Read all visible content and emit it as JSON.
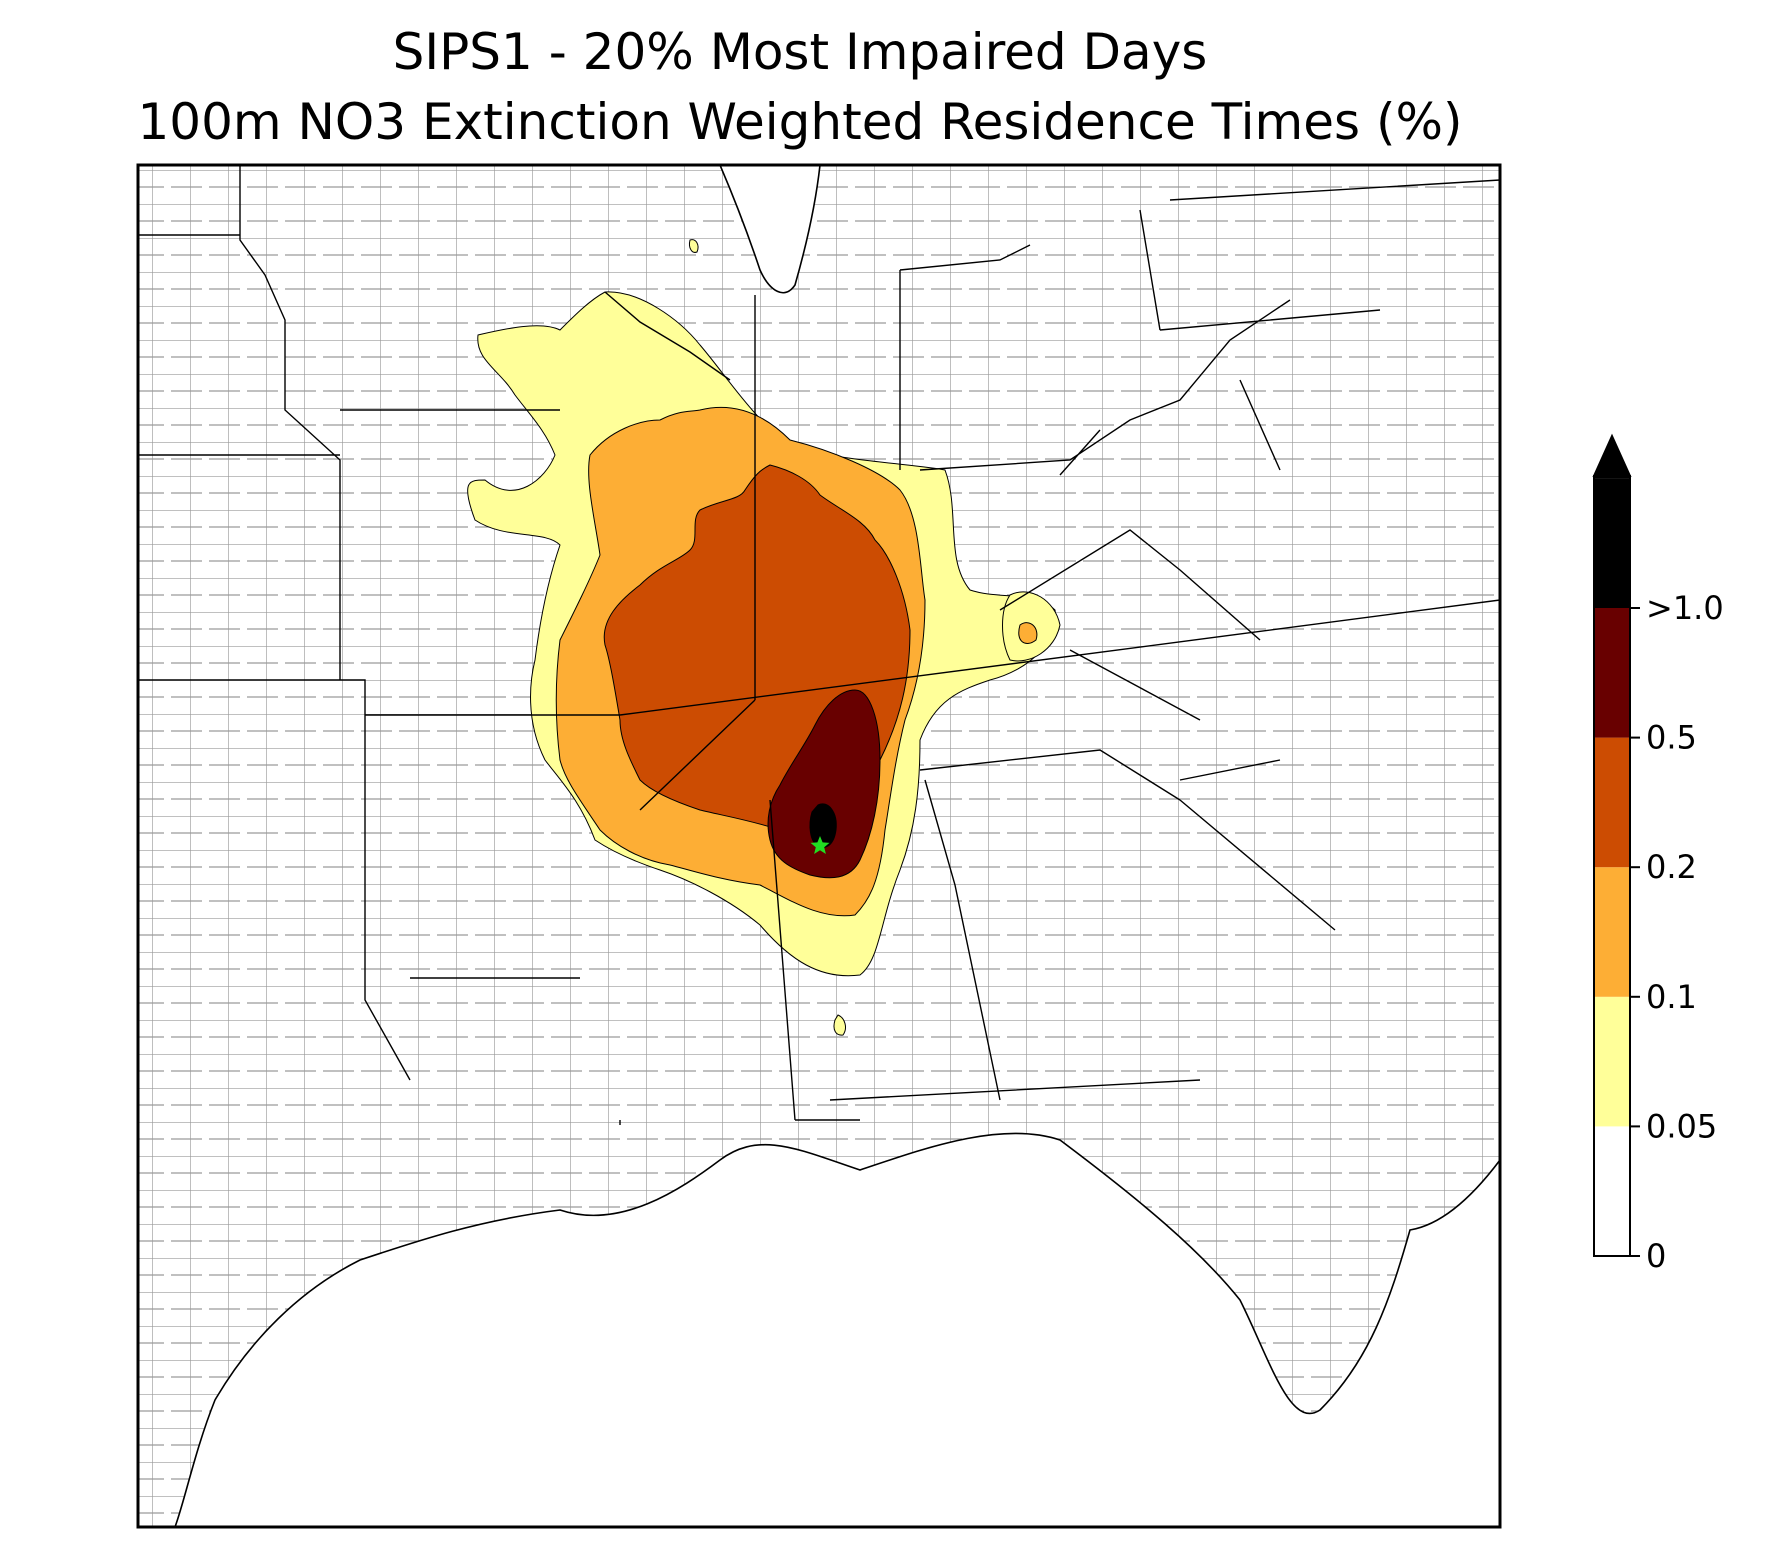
{
  "title": {
    "line1": "SIPS1 - 20% Most Impaired Days",
    "line2": "100m NO3 Extinction Weighted Residence Times (%)"
  },
  "map": {
    "region": "Southeastern United States",
    "marker": {
      "symbol": "star",
      "color": "#22dd22"
    }
  },
  "legend": {
    "levels": [
      {
        "label": "0",
        "color": "#ffffff"
      },
      {
        "label": "0.05",
        "color": "#ffff99"
      },
      {
        "label": "0.1",
        "color": "#fdae35"
      },
      {
        "label": "0.2",
        "color": "#cc4c02"
      },
      {
        "label": "0.5",
        "color": "#680000"
      },
      {
        "label": ">1.0",
        "color": "#000000"
      }
    ]
  },
  "colors": {
    "yellow": "#ffff99",
    "orange": "#fdae35",
    "rust": "#cc4c02",
    "maroon": "#680000",
    "black": "#000000",
    "county_lines": "#9a9a9a"
  }
}
